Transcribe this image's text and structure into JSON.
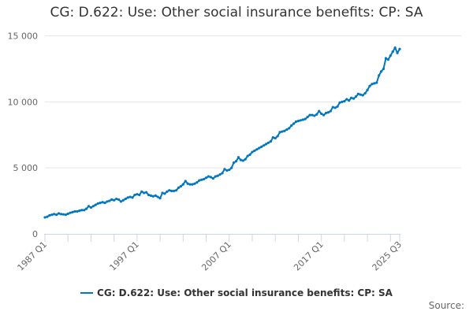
{
  "chart_data": {
    "type": "line",
    "title": "CG: D.622: Use: Other social insurance benefits: CP: SA",
    "xlabel": "",
    "ylabel": "",
    "ylim": [
      0,
      15000
    ],
    "yticks": [
      0,
      5000,
      10000,
      15000
    ],
    "ytick_labels": [
      "0",
      "5 000",
      "10 000",
      "15 000"
    ],
    "x_start": "1987 Q1",
    "x_end": "2025 Q3",
    "frequency": "quarterly",
    "xtick_labels": [
      "1987 Q1",
      "1997 Q1",
      "2007 Q1",
      "2017 Q1",
      "2025 Q3"
    ],
    "xtick_label_indices": [
      0,
      40,
      80,
      120,
      154
    ],
    "minor_tick_step_quarters": 10,
    "grid": true,
    "legend_position": "bottom",
    "series": [
      {
        "name": "CG: D.622: Use: Other social insurance benefits: CP: SA",
        "color": "#0077c0",
        "values": [
          1250,
          1300,
          1400,
          1450,
          1500,
          1450,
          1550,
          1500,
          1480,
          1450,
          1520,
          1600,
          1650,
          1700,
          1700,
          1750,
          1800,
          1800,
          1900,
          2100,
          2000,
          2100,
          2200,
          2300,
          2350,
          2400,
          2350,
          2450,
          2500,
          2600,
          2550,
          2650,
          2600,
          2450,
          2550,
          2650,
          2750,
          2800,
          2750,
          2950,
          3000,
          2950,
          3200,
          3100,
          3150,
          2950,
          2900,
          2850,
          2900,
          2800,
          2700,
          3100,
          3050,
          3200,
          3300,
          3250,
          3250,
          3300,
          3500,
          3600,
          3750,
          4000,
          3800,
          3750,
          3750,
          3800,
          3900,
          4050,
          4100,
          4150,
          4250,
          4350,
          4300,
          4200,
          4350,
          4400,
          4500,
          4600,
          4900,
          4800,
          4850,
          5000,
          5400,
          5500,
          5800,
          5600,
          5550,
          5650,
          5900,
          6000,
          6200,
          6300,
          6400,
          6500,
          6600,
          6700,
          6800,
          6900,
          7000,
          7300,
          7250,
          7400,
          7700,
          7750,
          7800,
          7900,
          8000,
          8200,
          8350,
          8500,
          8550,
          8600,
          8650,
          8700,
          8850,
          9000,
          9000,
          8950,
          9050,
          9300,
          9100,
          9000,
          9150,
          9200,
          9300,
          9600,
          9550,
          9650,
          9950,
          10000,
          10050,
          10200,
          10100,
          10300,
          10250,
          10400,
          10600,
          10550,
          10500,
          10650,
          10900,
          11200,
          11350,
          11400,
          11450,
          12000,
          12300,
          12500,
          13300,
          13200,
          13500,
          13800,
          14100,
          13700,
          14000
        ]
      }
    ]
  },
  "source_label": "Source:"
}
